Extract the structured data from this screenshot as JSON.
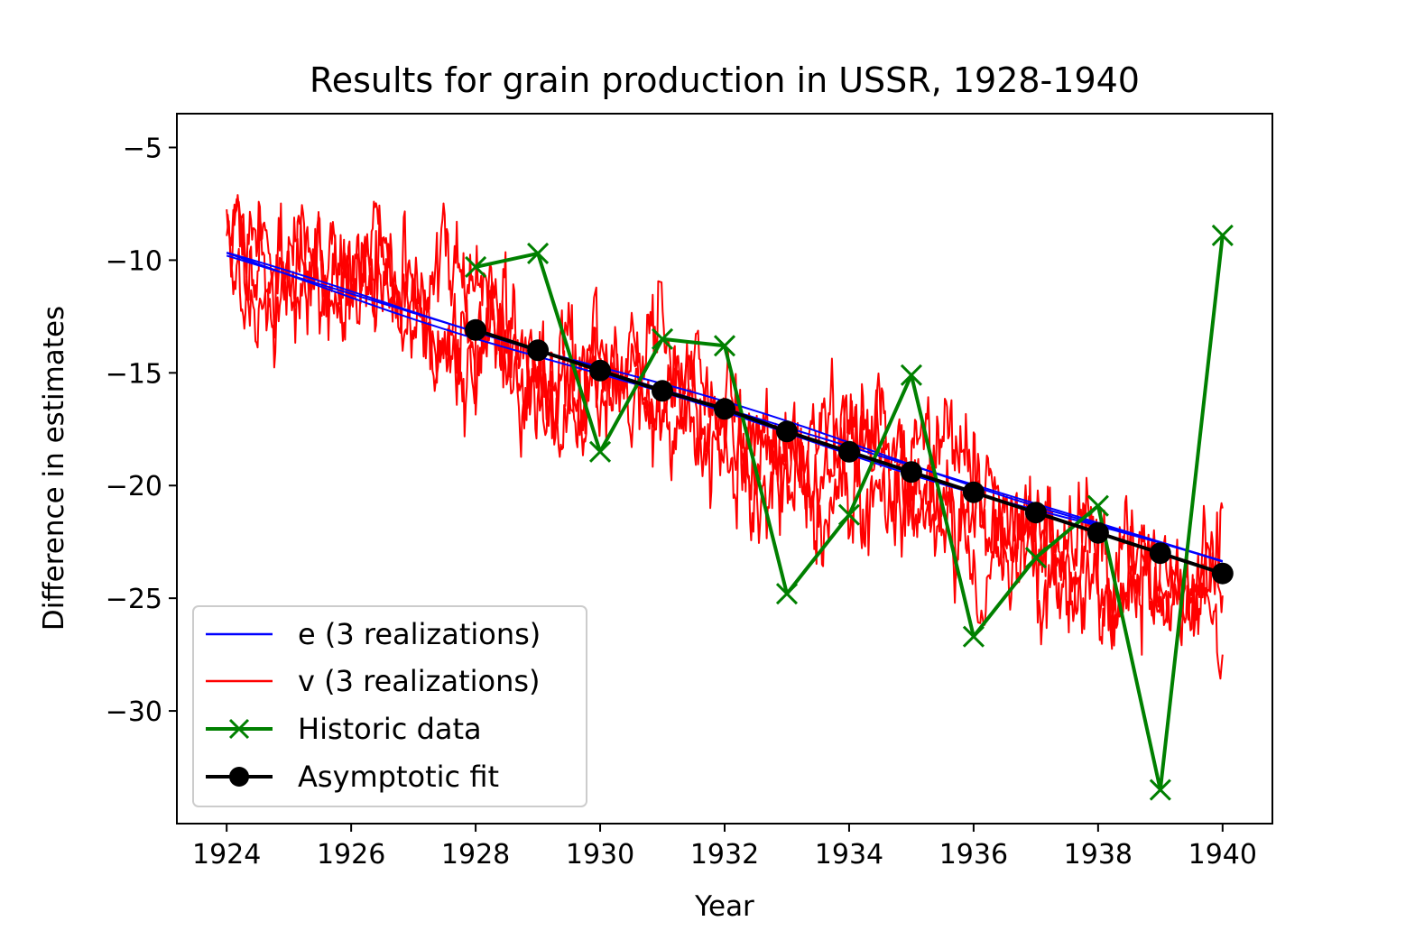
{
  "chart_data": {
    "type": "line",
    "title": "Results for grain production in USSR, 1928-1940",
    "xlabel": "Year",
    "ylabel": "Difference in estimates",
    "xlim": [
      1923.2,
      1940.8
    ],
    "ylim": [
      -35.0,
      -3.5
    ],
    "xticks": [
      1924,
      1926,
      1928,
      1930,
      1932,
      1934,
      1936,
      1938,
      1940
    ],
    "yticks": [
      -5,
      -10,
      -15,
      -20,
      -25,
      -30
    ],
    "grid": false,
    "legend_position": "lower-left",
    "colors": {
      "e": "#0000ff",
      "v": "#ff0000",
      "historic": "#008000",
      "fit": "#000000"
    },
    "series": [
      {
        "name": "e (3 realizations)",
        "kind": "line",
        "realizations": 3,
        "start": [
          1924,
          -9.8
        ],
        "end": [
          1940,
          -23.5
        ],
        "max_deviation": 0.35
      },
      {
        "name": "v (3 realizations)",
        "kind": "noisy-line",
        "realizations": 3,
        "start": [
          1924,
          -9.0
        ],
        "end": [
          1940,
          -25.0
        ],
        "noise_range": [
          -5,
          5
        ]
      },
      {
        "name": "Historic data",
        "kind": "line-x-markers",
        "x": [
          1928,
          1929,
          1930,
          1931,
          1932,
          1933,
          1934,
          1935,
          1936,
          1937,
          1938,
          1939,
          1940
        ],
        "y": [
          -10.3,
          -9.7,
          -18.5,
          -13.5,
          -13.8,
          -24.8,
          -21.3,
          -15.1,
          -26.7,
          -23.2,
          -20.9,
          -33.5,
          -8.9
        ]
      },
      {
        "name": "Asymptotic fit",
        "kind": "line-circle-markers",
        "x": [
          1928,
          1929,
          1930,
          1931,
          1932,
          1933,
          1934,
          1935,
          1936,
          1937,
          1938,
          1939,
          1940
        ],
        "y": [
          -13.1,
          -14.0,
          -14.9,
          -15.8,
          -16.6,
          -17.6,
          -18.5,
          -19.4,
          -20.3,
          -21.2,
          -22.1,
          -23.0,
          -23.9
        ]
      }
    ]
  }
}
